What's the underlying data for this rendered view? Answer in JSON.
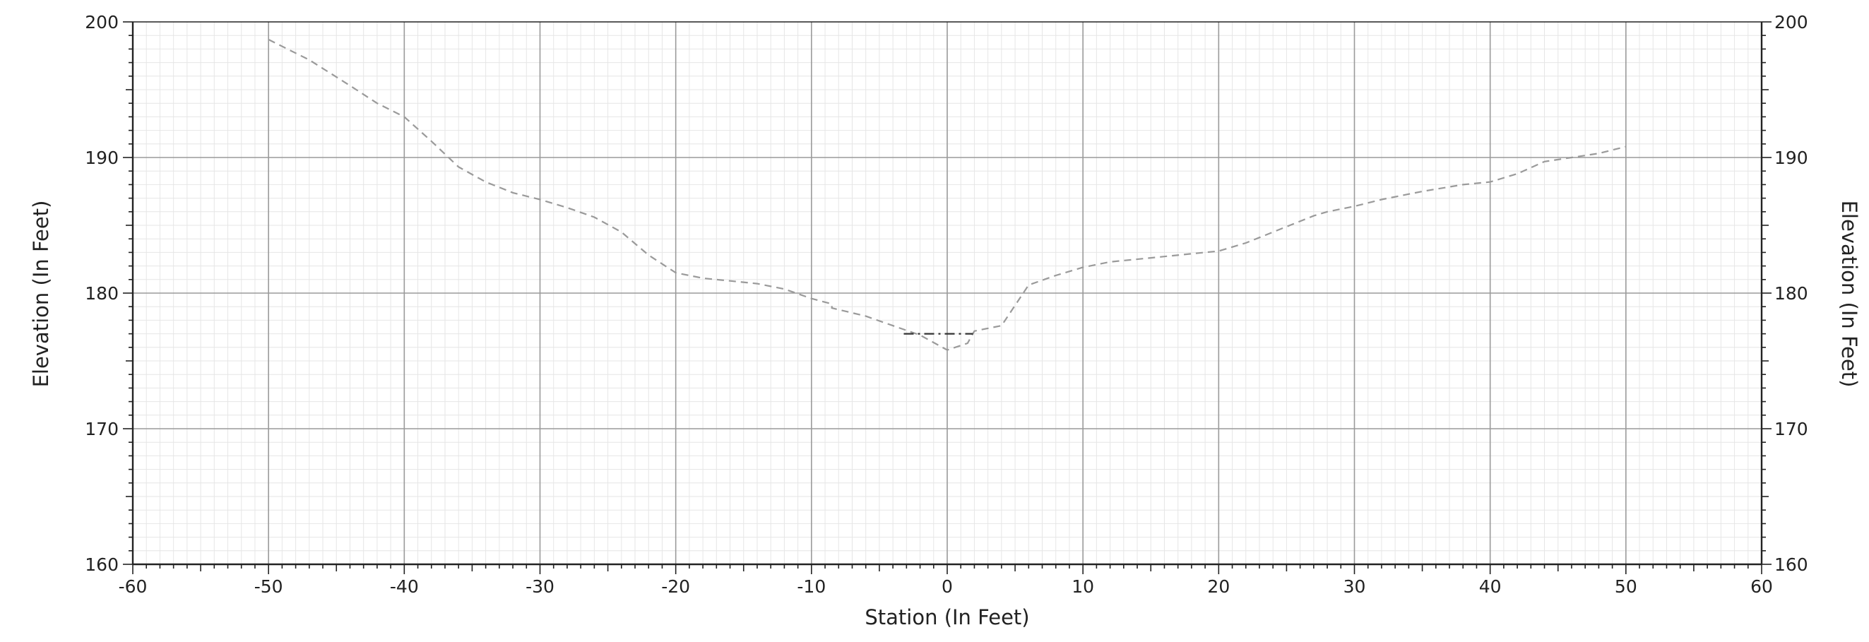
{
  "chart_data": {
    "type": "line",
    "title": "",
    "xlabel": "Station (In Feet)",
    "ylabel": "Elevation (In Feet)",
    "ylabel_right": "Elevation (In Feet)",
    "xlim": [
      -60,
      60
    ],
    "ylim": [
      160,
      200
    ],
    "x_ticks": [
      -60,
      -50,
      -40,
      -30,
      -20,
      -10,
      0,
      10,
      20,
      30,
      40,
      50,
      60
    ],
    "y_ticks": [
      160,
      170,
      180,
      190,
      200
    ],
    "grid": true,
    "minor_grid": true,
    "legend": "none",
    "colors": {
      "ground": "#9a9a9a",
      "water": "#333333",
      "major_grid": "#9a9a9a",
      "minor_grid": "#e6e6e6",
      "axis": "#222222"
    },
    "series": [
      {
        "style": "dashed",
        "x": [
          -50,
          -47,
          -44,
          -42,
          -40,
          -38,
          -36,
          -34,
          -32,
          -30,
          -28,
          -26,
          -24,
          -22,
          -20,
          -18,
          -16,
          -14,
          -12,
          -10,
          -8.5,
          -8.5,
          -6,
          -4,
          -2,
          0,
          1.5,
          2,
          3,
          4,
          6,
          8,
          10,
          12,
          15,
          18,
          20,
          22,
          25,
          27,
          28,
          30,
          32,
          35,
          38,
          40,
          42,
          44,
          46,
          48,
          50
        ],
        "y": [
          198.7,
          197.2,
          195.3,
          194.0,
          193.0,
          191.2,
          189.3,
          188.2,
          187.4,
          186.9,
          186.3,
          185.6,
          184.5,
          182.8,
          181.5,
          181.1,
          180.9,
          180.7,
          180.3,
          179.6,
          179.2,
          178.9,
          178.3,
          177.6,
          176.9,
          175.8,
          176.3,
          177.2,
          177.4,
          177.6,
          180.6,
          181.3,
          181.9,
          182.3,
          182.6,
          182.9,
          183.1,
          183.7,
          184.9,
          185.7,
          186.0,
          186.4,
          186.9,
          187.5,
          188.0,
          188.2,
          188.8,
          189.7,
          190.0,
          190.3,
          190.8
        ]
      },
      {
        "style": "dash-dot",
        "x": [
          -3.2,
          1.9
        ],
        "y": [
          177.0,
          177.0
        ]
      }
    ]
  }
}
